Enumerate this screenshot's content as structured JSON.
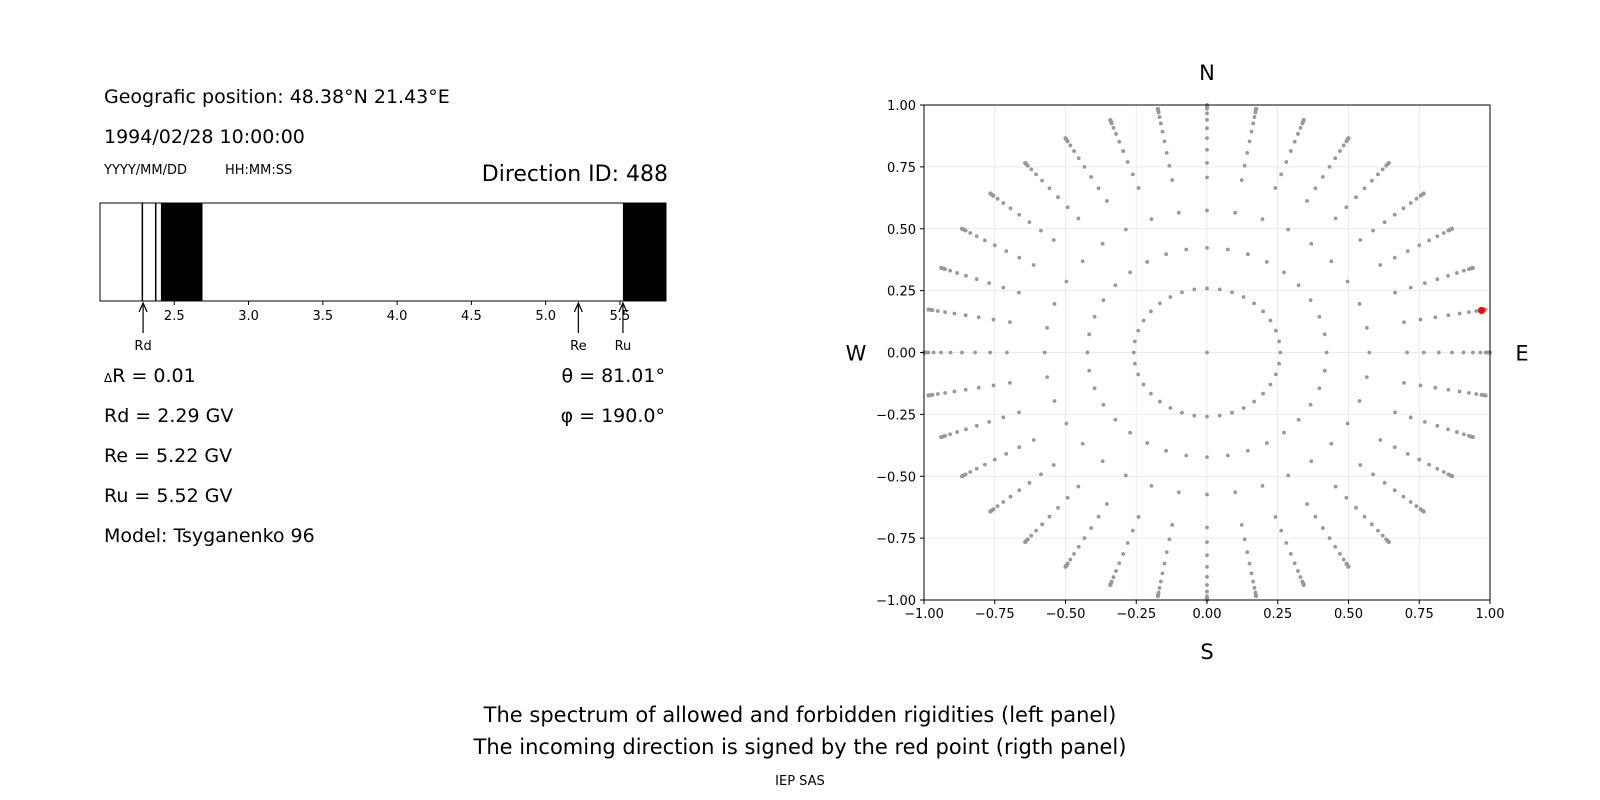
{
  "header": {
    "geo_position": "Geografic position: 48.38°N 21.43°E",
    "datetime": "1994/02/28 10:00:00",
    "date_format": "YYYY/MM/DD",
    "time_format": "HH:MM:SS",
    "direction_id": "Direction ID: 488"
  },
  "stats": {
    "delta_r_symbol": "Δ",
    "delta_r_rest": "R = 0.01",
    "rd": "Rd = 2.29 GV",
    "re": "Re = 5.22 GV",
    "ru": "Ru = 5.52 GV",
    "model": "Model: Tsyganenko 96",
    "theta": "θ = 81.01°",
    "phi": "φ = 190.0°"
  },
  "caption": {
    "line1": "The spectrum of allowed and forbidden rigidities (left panel)",
    "line2": "The incoming direction is signed by the red point (rigth panel)",
    "credit": "IEP SAS"
  },
  "chart_data": [
    {
      "type": "bar",
      "description_key": "rigidity_spectrum",
      "xlim": [
        2.0,
        5.81
      ],
      "ticks": [
        2.5,
        3.0,
        3.5,
        4.0,
        4.5,
        5.0,
        5.5
      ],
      "tick_labels": [
        "2.5",
        "3.0",
        "3.5",
        "4.0",
        "4.5",
        "5.0",
        "5.5"
      ],
      "forbidden_bands": [
        [
          2.28,
          2.29
        ],
        [
          2.37,
          2.38
        ],
        [
          2.41,
          2.69
        ],
        [
          5.52,
          5.81
        ]
      ],
      "markers": [
        {
          "label": "Rd",
          "value": 2.29
        },
        {
          "label": "Re",
          "value": 5.22
        },
        {
          "label": "Ru",
          "value": 5.52
        }
      ],
      "colors": {
        "forbidden": "#000000",
        "allowed": "#ffffff"
      }
    },
    {
      "type": "scatter",
      "description_key": "direction_map",
      "xlim": [
        -1.0,
        1.0
      ],
      "ylim": [
        -1.0,
        1.0
      ],
      "ticks": [
        -1.0,
        -0.75,
        -0.5,
        -0.25,
        0.0,
        0.25,
        0.5,
        0.75,
        1.0
      ],
      "x_tick_labels": [
        "−1.00",
        "−0.75",
        "−0.50",
        "−0.25",
        "0.00",
        "0.25",
        "0.50",
        "0.75",
        "1.00"
      ],
      "y_tick_labels": [
        "−1.00",
        "−0.75",
        "−0.50",
        "−0.25",
        "0.00",
        "0.25",
        "0.50",
        "0.75",
        "1.00"
      ],
      "grid": true,
      "compass": {
        "north": "N",
        "south": "S",
        "east": "E",
        "west": "W"
      },
      "grid_points": {
        "zenith_angles_deg": [
          0,
          15,
          25,
          35,
          45,
          50,
          55,
          60,
          65,
          70,
          75,
          80,
          82,
          84,
          86,
          88,
          90
        ],
        "azimuth_step_deg": 10,
        "color": "#999999"
      },
      "selected_point": {
        "x": 0.97,
        "y": 0.17,
        "color": "#ff0000"
      }
    }
  ]
}
